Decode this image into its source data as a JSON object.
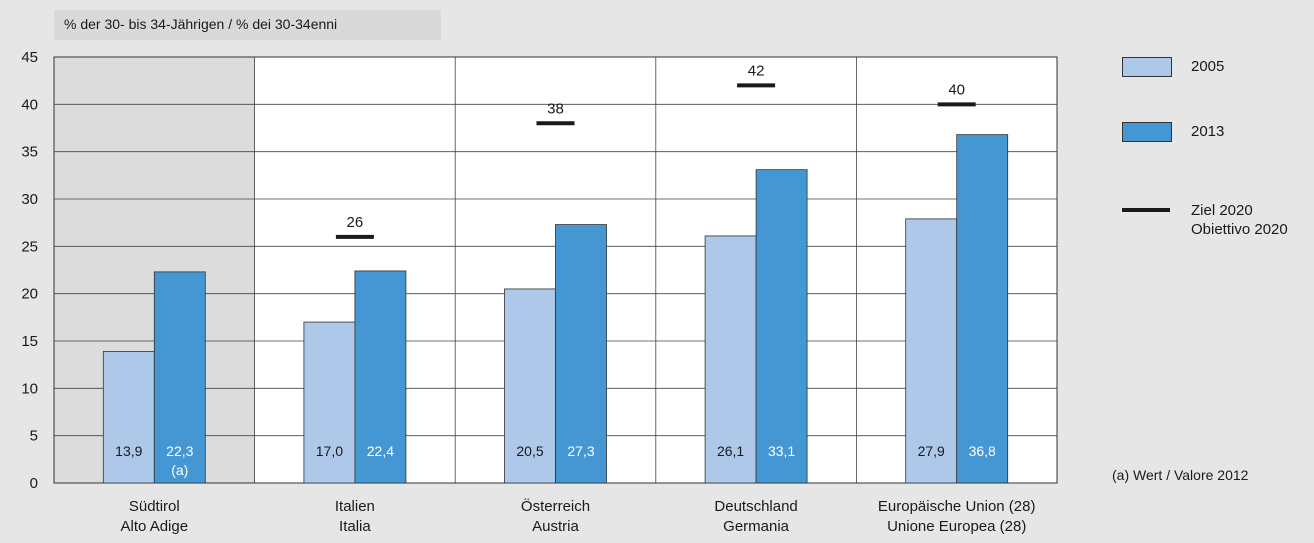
{
  "chart_data": {
    "type": "bar",
    "unit_label": "% der 30- bis 34-Jährigen / % dei 30-34enni",
    "ylim": [
      0,
      45
    ],
    "yticks": [
      0,
      5,
      10,
      15,
      20,
      25,
      30,
      35,
      40,
      45
    ],
    "grid": true,
    "legend_position": "right",
    "categories": [
      {
        "line1": "Südtirol",
        "line2": "Alto Adige"
      },
      {
        "line1": "Italien",
        "line2": "Italia"
      },
      {
        "line1": "Österreich",
        "line2": "Austria"
      },
      {
        "line1": "Deutschland",
        "line2": "Germania"
      },
      {
        "line1": "Europäische Union (28)",
        "line2": "Unione Europea (28)"
      }
    ],
    "series": [
      {
        "name": "2005",
        "color": "#adc8e8",
        "values": [
          13.9,
          17.0,
          20.5,
          26.1,
          27.9
        ],
        "labels": [
          "13,9",
          "17,0",
          "20,5",
          "26,1",
          "27,9"
        ]
      },
      {
        "name": "2013",
        "color": "#4497d2",
        "values": [
          22.3,
          22.4,
          27.3,
          33.1,
          36.8
        ],
        "labels": [
          "22,3",
          "22,4",
          "27,3",
          "33,1",
          "36,8"
        ]
      }
    ],
    "targets": {
      "name_de": "Ziel 2020",
      "name_it": "Obiettivo 2020",
      "values": [
        null,
        26,
        38,
        42,
        40
      ],
      "labels": [
        "",
        "26",
        "38",
        "42",
        "40"
      ]
    },
    "bar_notes": [
      "(a)",
      "",
      "",
      "",
      ""
    ],
    "footnote": "(a)  Wert / Valore 2012",
    "highlight_category_index": 0,
    "highlight_color": "#dcdcdc"
  }
}
